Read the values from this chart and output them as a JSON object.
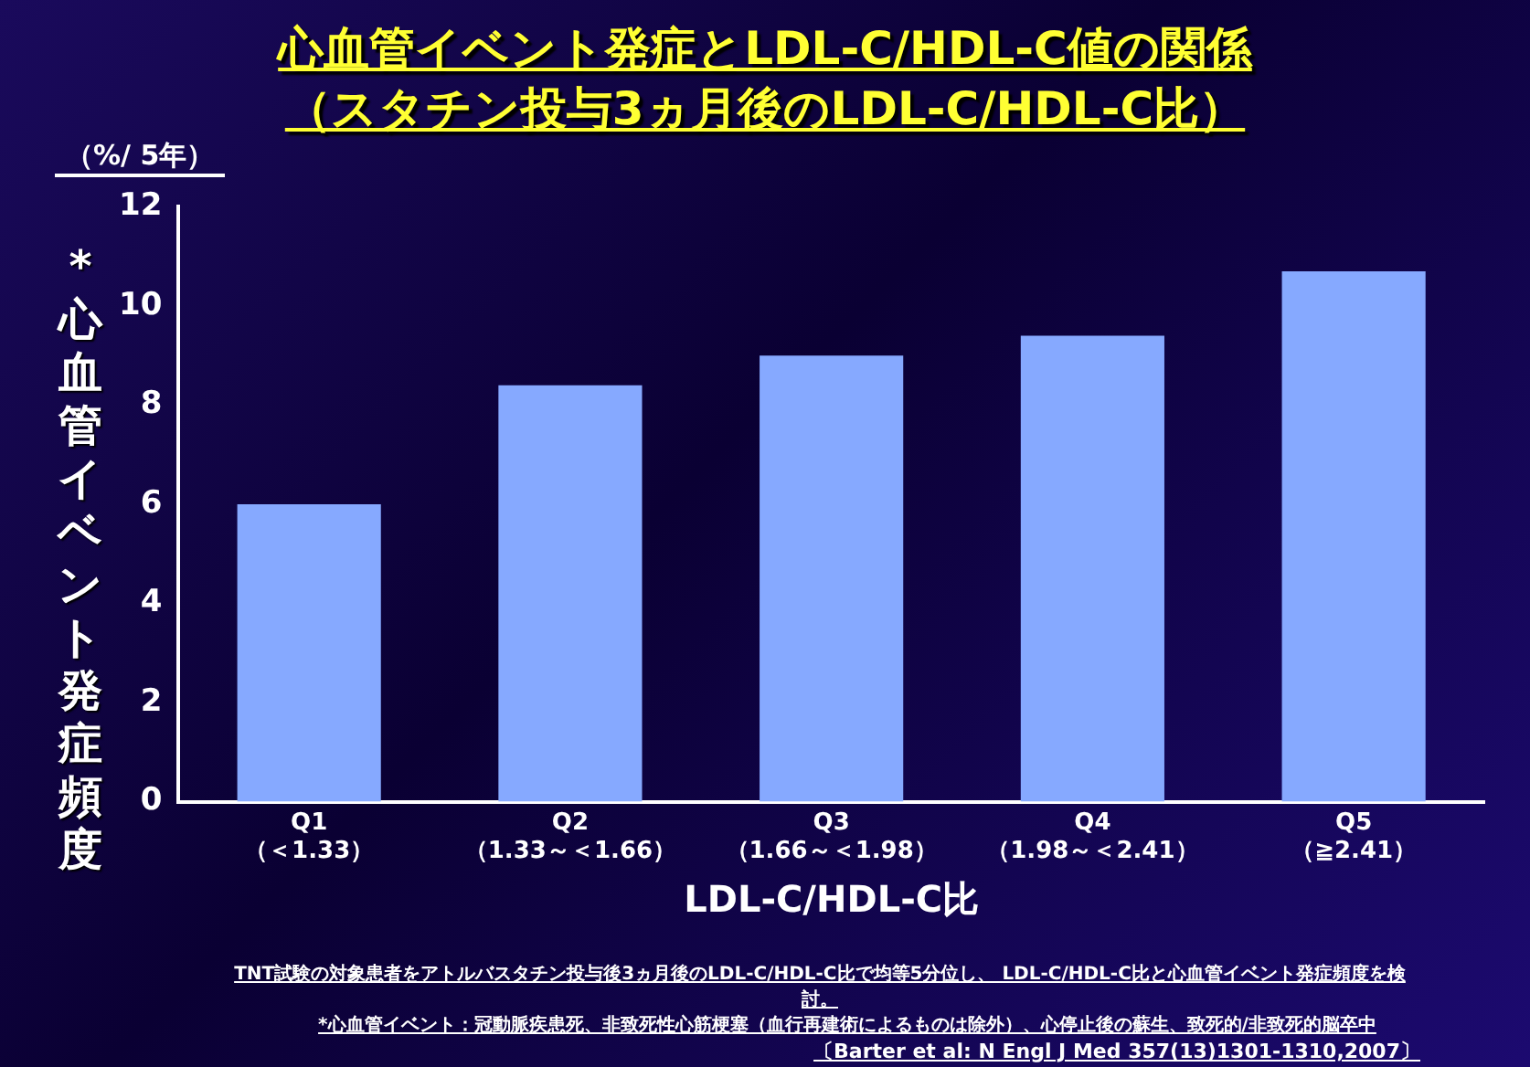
{
  "chart_data": {
    "type": "bar",
    "title": "心血管イベント発症とLDL-C/HDL-C値の関係",
    "subtitle": "（スタチン投与3ヵ月後のLDL-C/HDL-C比）",
    "xlabel": "LDL-C/HDL-C比",
    "ylabel": "*心血管イベント発症頻度",
    "categories": [
      "Q1\n（＜1.33）",
      "Q2\n（1.33～＜1.66）",
      "Q3\n（1.66～＜1.98）",
      "Q4\n（1.98～＜2.41）",
      "Q5\n（≧2.41）"
    ],
    "values": [
      6.0,
      8.4,
      9.0,
      9.4,
      10.7
    ],
    "color": "#86a9ff",
    "ylim": [
      0,
      12
    ],
    "yticks": [
      0,
      2,
      4,
      6,
      8,
      10,
      12
    ],
    "grid": false,
    "legend": false,
    "annotations": [
      "（%/ 5年）",
      "TNT試験の対象患者をアトルバスタチン投与後3ヵ月後のLDL-C/HDL-C比で均等5分位し、 LDL-C/HDL-C比と心血管イベント発症頻度を検討。",
      "*心血管イベント：冠動脈疾患死、非致死性心筋梗塞（血行再建術によるものは除外）、心停止後の蘇生、致死的/非致死的脳卒中",
      "〔Barter  et al: N Engl J Med 357(13)1301-1310,2007〕"
    ]
  }
}
